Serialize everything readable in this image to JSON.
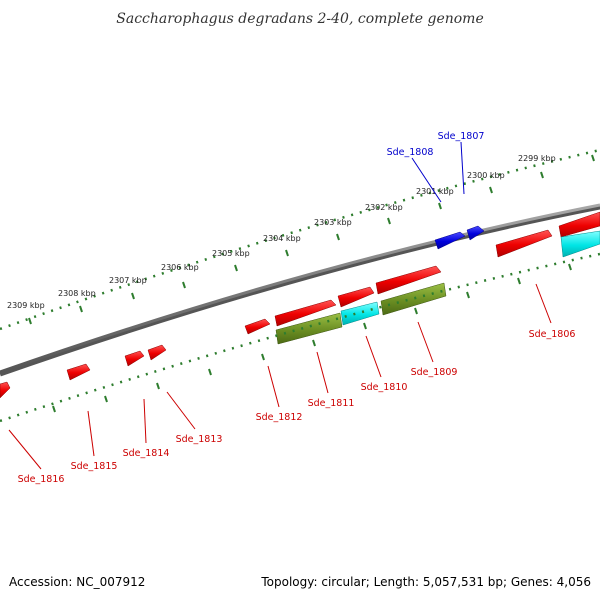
{
  "title": "Saccharophagus degradans 2-40, complete genome",
  "footer": {
    "accession": "Accession: NC_007912",
    "summary": "Topology: circular; Length: 5,057,531 bp; Genes: 4,056"
  },
  "colors": {
    "backbone": "#7a7a7a",
    "ticks": "#2e7d2e",
    "cds": "#ee0000",
    "cds_label": "#cc0000",
    "reverse_strand": "#0000dd",
    "reverse_label": "#0000cc",
    "cyan_feature": "#00e5e5",
    "olive_feature": "#6b8e23"
  },
  "kbp_ticks": [
    "2299 kbp",
    "2300 kbp",
    "2301 kbp",
    "2302 kbp",
    "2303 kbp",
    "2304 kbp",
    "2305 kbp",
    "2306 kbp",
    "2307 kbp",
    "2308 kbp",
    "2309 kbp"
  ],
  "genes_reverse": [
    {
      "id": "Sde_1807",
      "strand": "reverse"
    },
    {
      "id": "Sde_1808",
      "strand": "reverse"
    }
  ],
  "genes_forward": [
    {
      "id": "Sde_1806"
    },
    {
      "id": "Sde_1809"
    },
    {
      "id": "Sde_1810"
    },
    {
      "id": "Sde_1811"
    },
    {
      "id": "Sde_1812"
    },
    {
      "id": "Sde_1813"
    },
    {
      "id": "Sde_1814"
    },
    {
      "id": "Sde_1815"
    },
    {
      "id": "Sde_1816"
    }
  ]
}
